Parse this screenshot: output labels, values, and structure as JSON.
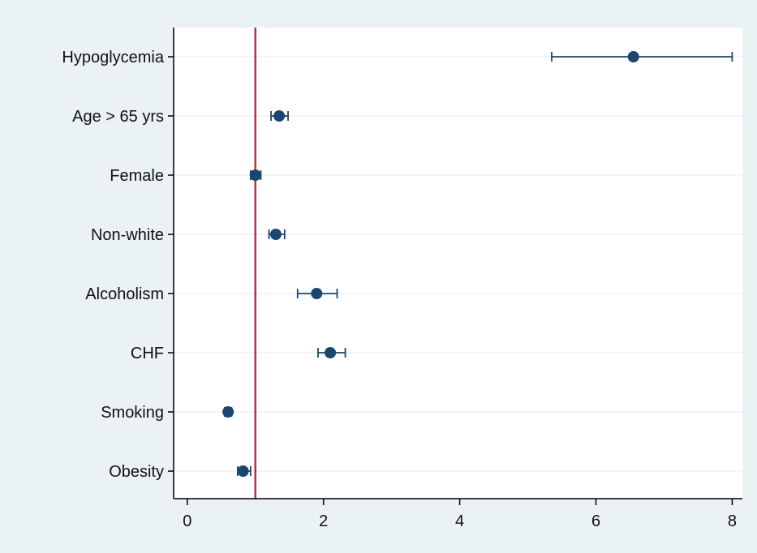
{
  "chart_data": {
    "type": "scatter",
    "subtype": "forest-plot",
    "title": "",
    "xlabel": "",
    "ylabel": "",
    "xlim": [
      -0.2,
      8.15
    ],
    "xticks": [
      0,
      2,
      4,
      6,
      8
    ],
    "reference_line": {
      "x": 1,
      "color": "#b03550"
    },
    "grid": "horizontal",
    "legend": "none",
    "colors": {
      "outer_background": "#eaf2f3",
      "plot_background": "#ffffff",
      "gridline": "#e9eef0",
      "marker": "#1a476f",
      "error_bar": "#1a476f",
      "axis": "#000000"
    },
    "categories": [
      "Hypoglycemia",
      "Age > 65 yrs",
      "Female",
      "Non-white",
      "Alcoholism",
      "CHF",
      "Smoking",
      "Obesity"
    ],
    "series": [
      {
        "values": [
          6.55,
          1.35,
          1.0,
          1.3,
          1.9,
          2.1,
          0.6,
          0.82
        ],
        "lower": [
          5.35,
          1.23,
          0.93,
          1.2,
          1.62,
          1.92,
          0.55,
          0.74
        ],
        "upper": [
          8.0,
          1.48,
          1.08,
          1.43,
          2.2,
          2.32,
          0.65,
          0.93
        ]
      }
    ]
  }
}
